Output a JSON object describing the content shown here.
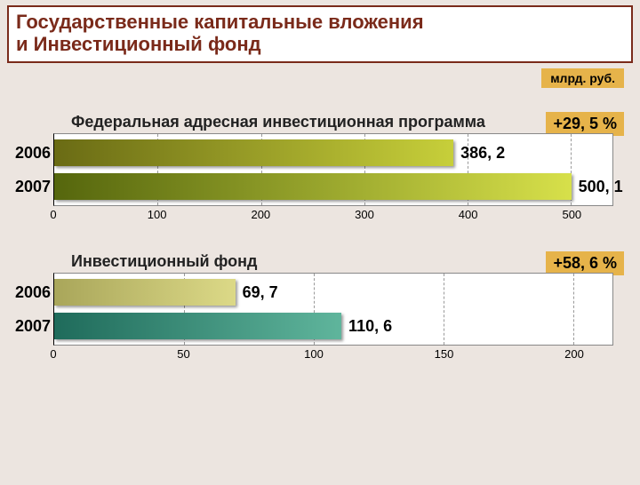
{
  "title_line1": "Государственные капитальные вложения",
  "title_line2": "и Инвестиционный фонд",
  "unit_label": "млрд. руб.",
  "background_color": "#ece5e0",
  "title_border_color": "#7a2a1a",
  "title_text_color": "#7a2a1a",
  "badge_bg": "#e6b34a",
  "chart1": {
    "title": "Федеральная адресная инвестиционная программа",
    "pct_label": "+29, 5 %",
    "xmax": 540,
    "ticks": [
      0,
      100,
      200,
      300,
      400,
      500
    ],
    "bars": [
      {
        "year": "2006",
        "value": 386.2,
        "label": "386, 2",
        "grad_from": "#6a6b14",
        "grad_to": "#c7cf3a"
      },
      {
        "year": "2007",
        "value": 500.1,
        "label": "500, 1",
        "grad_from": "#55660d",
        "grad_to": "#d7e04a"
      }
    ]
  },
  "chart2": {
    "title": "Инвестиционный фонд",
    "pct_label": "+58, 6 %",
    "xmax": 215,
    "ticks": [
      0,
      50,
      100,
      150,
      200
    ],
    "bars": [
      {
        "year": "2006",
        "value": 69.7,
        "label": "69, 7",
        "grad_from": "#a9a65a",
        "grad_to": "#dcd987"
      },
      {
        "year": "2007",
        "value": 110.6,
        "label": "110, 6",
        "grad_from": "#1f6b5b",
        "grad_to": "#5fb59c"
      }
    ]
  }
}
